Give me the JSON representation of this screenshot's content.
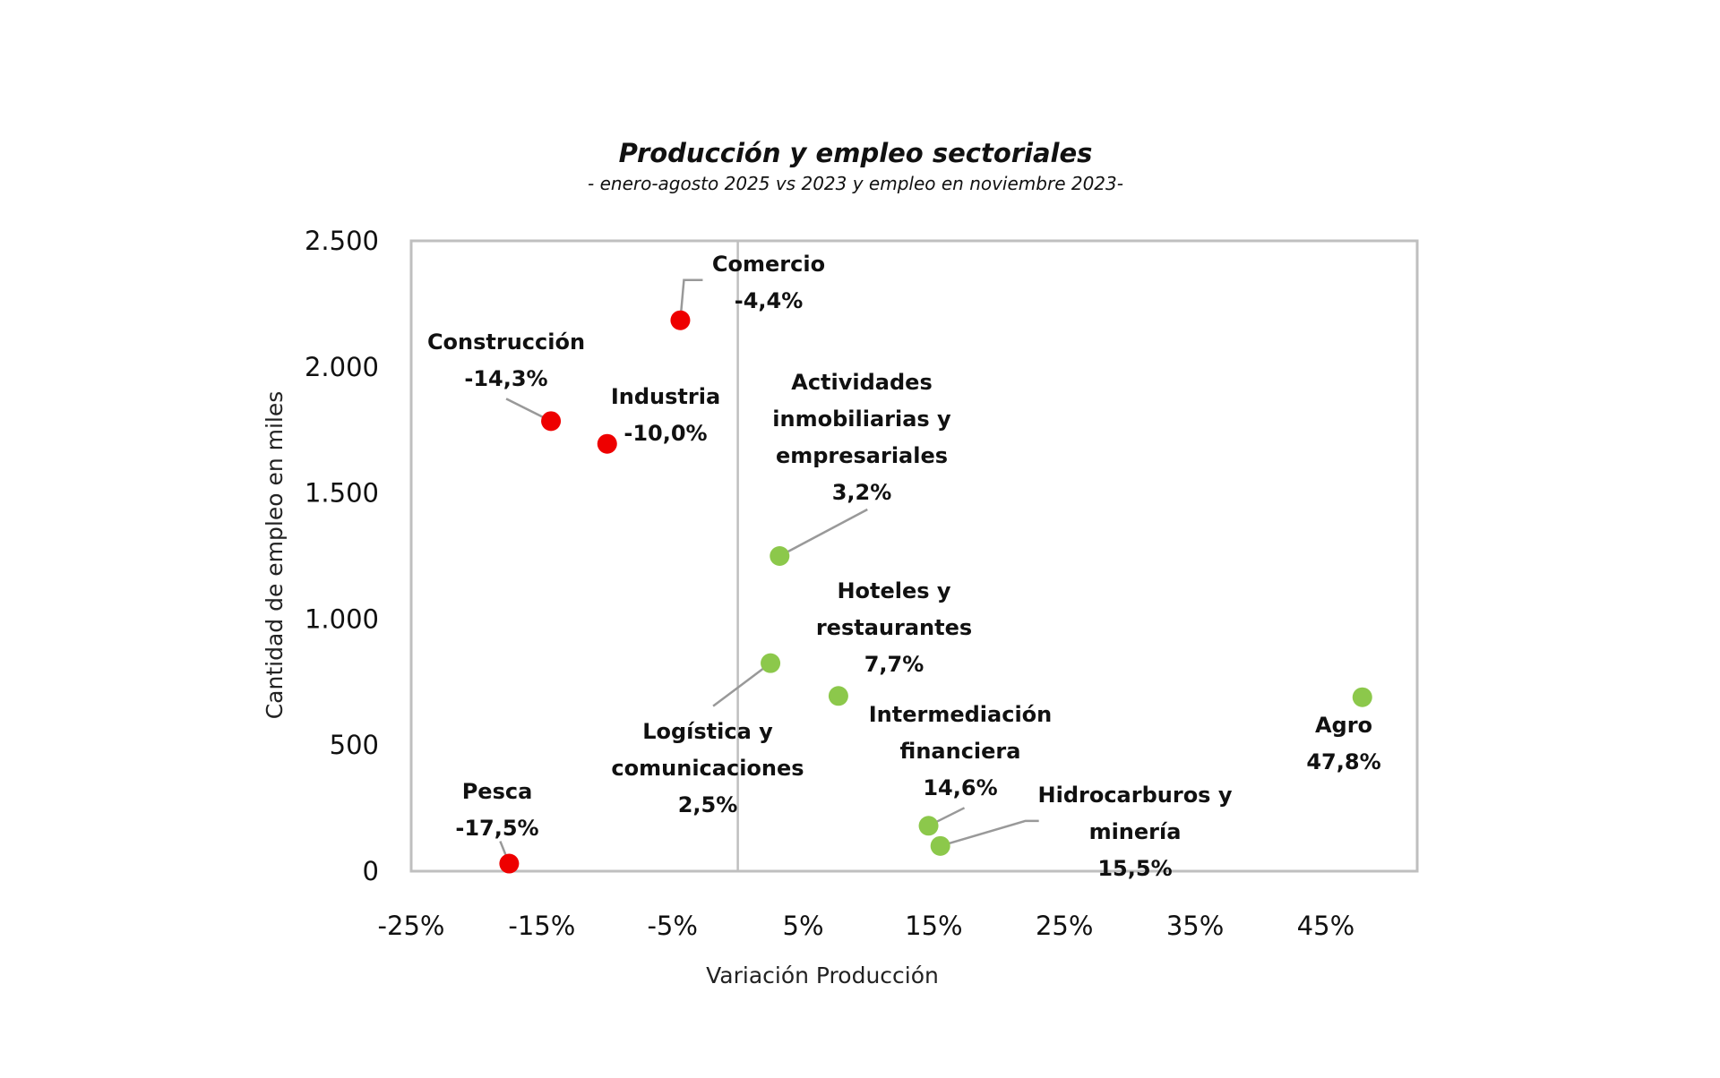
{
  "chart_data": {
    "type": "scatter",
    "title": "Producción y empleo sectoriales",
    "subtitle": "- enero-agosto 2025 vs 2023 y empleo en noviembre 2023-",
    "xlabel": "Variación Producción",
    "ylabel": "Cantidad de empleo en miles",
    "xlim": [
      -25,
      52
    ],
    "ylim": [
      0,
      2500
    ],
    "x_ticks": [
      -25,
      -15,
      -5,
      5,
      15,
      25,
      35,
      45
    ],
    "x_tick_labels": [
      "-25%",
      "-15%",
      "-5%",
      "5%",
      "15%",
      "25%",
      "35%",
      "45%"
    ],
    "y_ticks": [
      0,
      500,
      1000,
      1500,
      2000,
      2500
    ],
    "y_tick_labels": [
      "0",
      "500",
      "1.000",
      "1.500",
      "2.000",
      "2.500"
    ],
    "grid": false,
    "reference_line_x": 0,
    "colors": {
      "negative": "#ee0000",
      "positive": "#8cc84b",
      "leader": "#999999",
      "frame": "#bfbfbf"
    },
    "points": [
      {
        "name": "Comercio",
        "label_lines": [
          "Comercio",
          "-4,4%"
        ],
        "x": -4.4,
        "y": 2185,
        "sign": "negative"
      },
      {
        "name": "Construcción",
        "label_lines": [
          "Construcción",
          "-14,3%"
        ],
        "x": -14.3,
        "y": 1785,
        "sign": "negative"
      },
      {
        "name": "Industria",
        "label_lines": [
          "Industria",
          "-10,0%"
        ],
        "x": -10.0,
        "y": 1695,
        "sign": "negative"
      },
      {
        "name": "Actividades inmobiliarias y empresariales",
        "label_lines": [
          "Actividades",
          "inmobiliarias y",
          "empresariales",
          "3,2%"
        ],
        "x": 3.2,
        "y": 1250,
        "sign": "positive"
      },
      {
        "name": "Logística y comunicaciones",
        "label_lines": [
          "Logística y",
          "comunicaciones",
          "2,5%"
        ],
        "x": 2.5,
        "y": 825,
        "sign": "positive"
      },
      {
        "name": "Hoteles y restaurantes",
        "label_lines": [
          "Hoteles y",
          "restaurantes",
          "7,7%"
        ],
        "x": 7.7,
        "y": 695,
        "sign": "positive"
      },
      {
        "name": "Agro",
        "label_lines": [
          "Agro",
          "47,8%"
        ],
        "x": 47.8,
        "y": 690,
        "sign": "positive"
      },
      {
        "name": "Intermediación financiera",
        "label_lines": [
          "Intermediación",
          "financiera",
          "14,6%"
        ],
        "x": 14.6,
        "y": 180,
        "sign": "positive"
      },
      {
        "name": "Hidrocarburos y minería",
        "label_lines": [
          "Hidrocarburos y",
          "minería",
          "15,5%"
        ],
        "x": 15.5,
        "y": 100,
        "sign": "positive"
      },
      {
        "name": "Pesca",
        "label_lines": [
          "Pesca",
          "-17,5%"
        ],
        "x": -17.5,
        "y": 30,
        "sign": "negative"
      }
    ]
  }
}
